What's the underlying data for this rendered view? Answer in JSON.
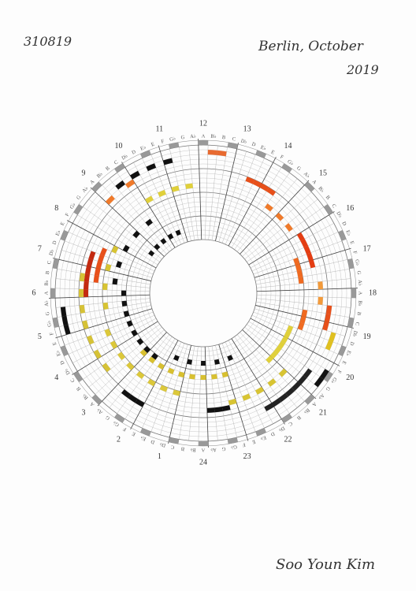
{
  "header": {
    "code": "310819",
    "place": "Berlin, October",
    "year": "2019"
  },
  "hours": [
    1,
    2,
    3,
    4,
    5,
    6,
    7,
    8,
    9,
    10,
    11,
    12,
    13,
    14,
    15,
    16,
    17,
    18,
    19,
    20,
    21,
    22,
    23,
    24
  ],
  "notes": [
    "A",
    "B♭",
    "B",
    "C",
    "D♭",
    "D",
    "E♭",
    "E",
    "F",
    "G♭",
    "G",
    "A♭",
    "A",
    "B♭",
    "B",
    "C",
    "D♭",
    "D",
    "E♭",
    "E",
    "F",
    "G♭",
    "G",
    "A♭",
    "A",
    "B♭",
    "B",
    "C",
    "D♭",
    "D",
    "E♭",
    "E",
    "F",
    "G♭",
    "G",
    "A♭",
    "A",
    "B♭",
    "B",
    "C",
    "D♭",
    "D",
    "E♭",
    "E",
    "F",
    "G♭",
    "G",
    "A♭",
    "A",
    "B♭",
    "B",
    "C",
    "D♭",
    "D",
    "E♭",
    "E",
    "F",
    "G♭",
    "G",
    "A♭",
    "A",
    "B♭",
    "B",
    "C",
    "D♭",
    "D",
    "E♭",
    "E",
    "F",
    "G♭",
    "G",
    "A♭",
    "A",
    "B♭",
    "B",
    "C",
    "D♭",
    "D",
    "E♭",
    "E",
    "F",
    "G♭",
    "G",
    "A♭",
    "A",
    "B♭",
    "B",
    "C",
    "D♭",
    "D",
    "E♭",
    "E",
    "F",
    "G♭",
    "G",
    "A♭"
  ],
  "signature": "Soo Youn Kim"
}
